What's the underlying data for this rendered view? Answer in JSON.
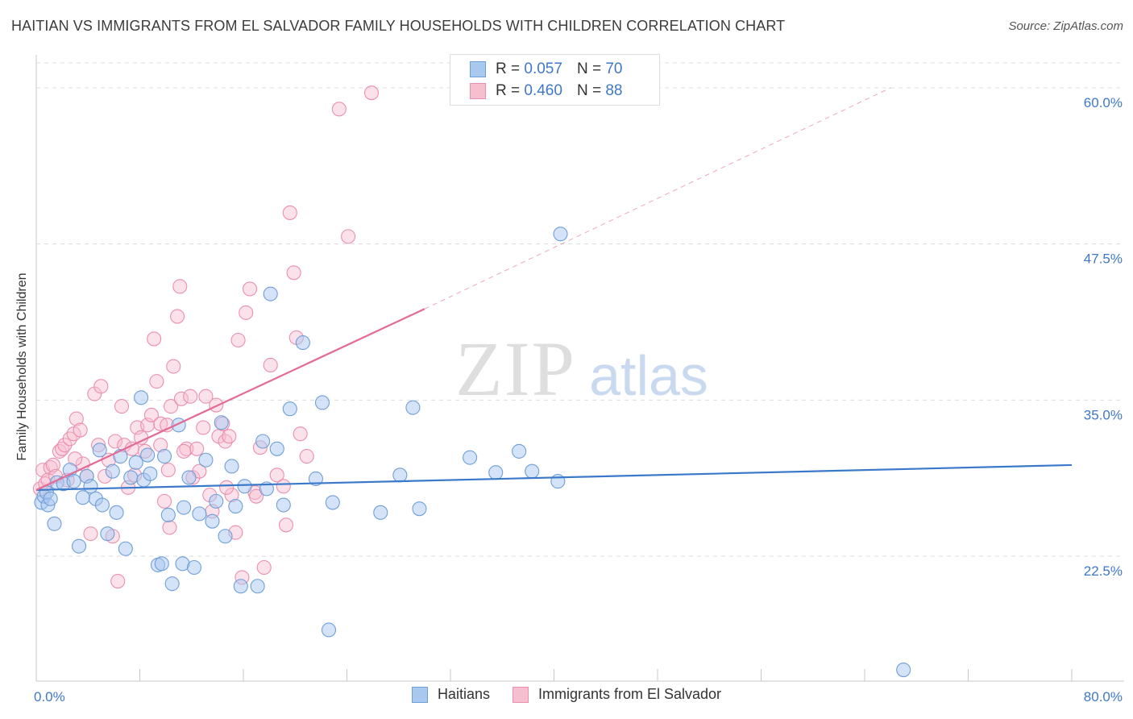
{
  "title": "HAITIAN VS IMMIGRANTS FROM EL SALVADOR FAMILY HOUSEHOLDS WITH CHILDREN CORRELATION CHART",
  "source": "Source: ZipAtlas.com",
  "watermark": {
    "zip": "ZIP",
    "atlas": "atlas"
  },
  "legend": {
    "rows": [
      {
        "r_label": "R =",
        "r_value": "0.057",
        "n_label": "N =",
        "n_value": "70"
      },
      {
        "r_label": "R =",
        "r_value": "0.460",
        "n_label": "N =",
        "n_value": "88"
      }
    ]
  },
  "colors": {
    "haitians_fill": "#a9c8ef",
    "haitians_stroke": "#6f9fd8",
    "haitians_line": "#3a78c9",
    "salvador_fill": "#f6bfd0",
    "salvador_stroke": "#ea8fae",
    "salvador_line": "#e46a96",
    "axis_text": "#3f78c8",
    "grid": "#dcdcdc"
  },
  "chart_data": {
    "type": "scatter",
    "title": "HAITIAN VS IMMIGRANTS FROM EL SALVADOR FAMILY HOUSEHOLDS WITH CHILDREN CORRELATION CHART",
    "xlabel": "",
    "ylabel": "Family Households with Children",
    "xlim": [
      0,
      80
    ],
    "ylim": [
      12.5,
      62
    ],
    "x_tick_labels": [
      "0.0%",
      "80.0%"
    ],
    "y_ticks": [
      22.5,
      35.0,
      47.5,
      60.0
    ],
    "y_tick_labels": [
      "22.5%",
      "35.0%",
      "47.5%",
      "60.0%"
    ],
    "grid": true,
    "legend_position": "bottom-center",
    "series": [
      {
        "name": "Haitians",
        "r": 0.057,
        "n": 70,
        "trend": {
          "x": [
            0,
            80
          ],
          "y": [
            27.8,
            29.8
          ],
          "style": "solid"
        },
        "points": [
          [
            0.4,
            26.8
          ],
          [
            0.6,
            27.3
          ],
          [
            0.8,
            27.6
          ],
          [
            0.9,
            26.6
          ],
          [
            1.1,
            27.1
          ],
          [
            1.4,
            25.1
          ],
          [
            1.6,
            28.4
          ],
          [
            2.1,
            28.3
          ],
          [
            2.6,
            29.4
          ],
          [
            2.9,
            28.5
          ],
          [
            3.3,
            23.3
          ],
          [
            3.6,
            27.2
          ],
          [
            3.9,
            28.9
          ],
          [
            4.2,
            28.1
          ],
          [
            4.6,
            27.1
          ],
          [
            4.9,
            31.0
          ],
          [
            5.1,
            26.6
          ],
          [
            5.5,
            24.3
          ],
          [
            5.9,
            29.3
          ],
          [
            6.2,
            26.0
          ],
          [
            6.5,
            30.5
          ],
          [
            6.9,
            23.1
          ],
          [
            7.3,
            28.8
          ],
          [
            7.7,
            30.0
          ],
          [
            8.1,
            35.2
          ],
          [
            8.3,
            28.6
          ],
          [
            8.6,
            30.6
          ],
          [
            8.8,
            29.1
          ],
          [
            9.4,
            21.8
          ],
          [
            9.7,
            21.9
          ],
          [
            9.9,
            30.5
          ],
          [
            10.2,
            25.8
          ],
          [
            10.5,
            20.3
          ],
          [
            11.0,
            33.0
          ],
          [
            11.3,
            21.9
          ],
          [
            11.4,
            26.4
          ],
          [
            11.8,
            28.8
          ],
          [
            12.2,
            21.6
          ],
          [
            12.6,
            25.9
          ],
          [
            13.1,
            30.2
          ],
          [
            13.6,
            25.3
          ],
          [
            13.9,
            26.9
          ],
          [
            14.3,
            33.2
          ],
          [
            14.6,
            24.1
          ],
          [
            15.1,
            29.7
          ],
          [
            15.4,
            26.5
          ],
          [
            15.8,
            20.1
          ],
          [
            16.1,
            28.1
          ],
          [
            17.1,
            20.1
          ],
          [
            17.5,
            31.7
          ],
          [
            17.8,
            27.9
          ],
          [
            18.1,
            43.5
          ],
          [
            18.6,
            31.1
          ],
          [
            19.1,
            26.6
          ],
          [
            19.6,
            34.3
          ],
          [
            20.6,
            39.6
          ],
          [
            21.6,
            28.7
          ],
          [
            22.1,
            34.8
          ],
          [
            22.6,
            16.6
          ],
          [
            22.9,
            26.8
          ],
          [
            26.6,
            26.0
          ],
          [
            28.1,
            29.0
          ],
          [
            29.1,
            34.4
          ],
          [
            29.6,
            26.3
          ],
          [
            33.5,
            30.4
          ],
          [
            35.5,
            29.2
          ],
          [
            37.3,
            30.9
          ],
          [
            38.3,
            29.3
          ],
          [
            40.3,
            28.5
          ],
          [
            40.5,
            48.3
          ],
          [
            67.0,
            13.4
          ]
        ]
      },
      {
        "name": "Immigrants from El Salvador",
        "r": 0.46,
        "n": 88,
        "trend": {
          "x": [
            0,
            30
          ],
          "y": [
            27.8,
            42.3
          ],
          "style": "solid",
          "extension_to": [
            66.0,
            60.0
          ],
          "extension_style": "dashed"
        },
        "points": [
          [
            0.3,
            27.9
          ],
          [
            0.5,
            29.4
          ],
          [
            0.7,
            28.3
          ],
          [
            0.9,
            28.6
          ],
          [
            1.1,
            29.6
          ],
          [
            1.3,
            29.8
          ],
          [
            1.5,
            28.9
          ],
          [
            1.8,
            30.9
          ],
          [
            2.0,
            31.1
          ],
          [
            2.2,
            31.4
          ],
          [
            2.4,
            28.6
          ],
          [
            2.6,
            31.9
          ],
          [
            2.9,
            32.3
          ],
          [
            3.1,
            33.5
          ],
          [
            3.4,
            32.6
          ],
          [
            3.6,
            29.9
          ],
          [
            3.9,
            28.9
          ],
          [
            4.2,
            24.3
          ],
          [
            4.5,
            35.5
          ],
          [
            4.8,
            31.4
          ],
          [
            5.0,
            36.1
          ],
          [
            5.3,
            28.9
          ],
          [
            5.6,
            30.2
          ],
          [
            5.9,
            24.1
          ],
          [
            6.1,
            31.7
          ],
          [
            6.3,
            20.5
          ],
          [
            6.6,
            34.5
          ],
          [
            6.8,
            31.4
          ],
          [
            7.1,
            28.0
          ],
          [
            7.4,
            31.1
          ],
          [
            7.6,
            29.0
          ],
          [
            7.8,
            32.8
          ],
          [
            8.1,
            32.0
          ],
          [
            8.4,
            30.9
          ],
          [
            8.6,
            33.0
          ],
          [
            8.9,
            33.8
          ],
          [
            9.1,
            39.9
          ],
          [
            9.3,
            36.5
          ],
          [
            9.6,
            33.1
          ],
          [
            9.9,
            26.9
          ],
          [
            10.1,
            33.0
          ],
          [
            10.3,
            24.8
          ],
          [
            10.4,
            34.5
          ],
          [
            10.6,
            37.7
          ],
          [
            10.9,
            41.7
          ],
          [
            11.1,
            44.1
          ],
          [
            11.2,
            35.1
          ],
          [
            11.6,
            31.1
          ],
          [
            11.9,
            35.3
          ],
          [
            12.1,
            28.8
          ],
          [
            12.4,
            31.1
          ],
          [
            12.6,
            29.3
          ],
          [
            12.9,
            32.8
          ],
          [
            13.1,
            35.3
          ],
          [
            13.4,
            27.4
          ],
          [
            13.6,
            26.1
          ],
          [
            13.9,
            34.6
          ],
          [
            14.1,
            32.1
          ],
          [
            14.4,
            33.1
          ],
          [
            14.6,
            31.7
          ],
          [
            14.9,
            32.1
          ],
          [
            15.1,
            27.4
          ],
          [
            15.4,
            24.4
          ],
          [
            15.6,
            39.8
          ],
          [
            15.9,
            20.8
          ],
          [
            16.2,
            42.0
          ],
          [
            16.5,
            43.9
          ],
          [
            16.9,
            27.6
          ],
          [
            17.3,
            31.2
          ],
          [
            17.6,
            21.6
          ],
          [
            18.1,
            37.8
          ],
          [
            18.6,
            29.0
          ],
          [
            19.1,
            28.1
          ],
          [
            19.3,
            25.0
          ],
          [
            19.6,
            50.0
          ],
          [
            19.9,
            45.2
          ],
          [
            20.1,
            40.0
          ],
          [
            20.4,
            32.3
          ],
          [
            20.9,
            30.5
          ],
          [
            23.4,
            58.3
          ],
          [
            24.1,
            48.1
          ],
          [
            25.9,
            59.6
          ],
          [
            9.6,
            31.4
          ],
          [
            11.4,
            30.9
          ],
          [
            14.7,
            28.0
          ],
          [
            17.0,
            27.3
          ],
          [
            10.2,
            29.4
          ],
          [
            3.0,
            30.3
          ]
        ]
      }
    ]
  }
}
